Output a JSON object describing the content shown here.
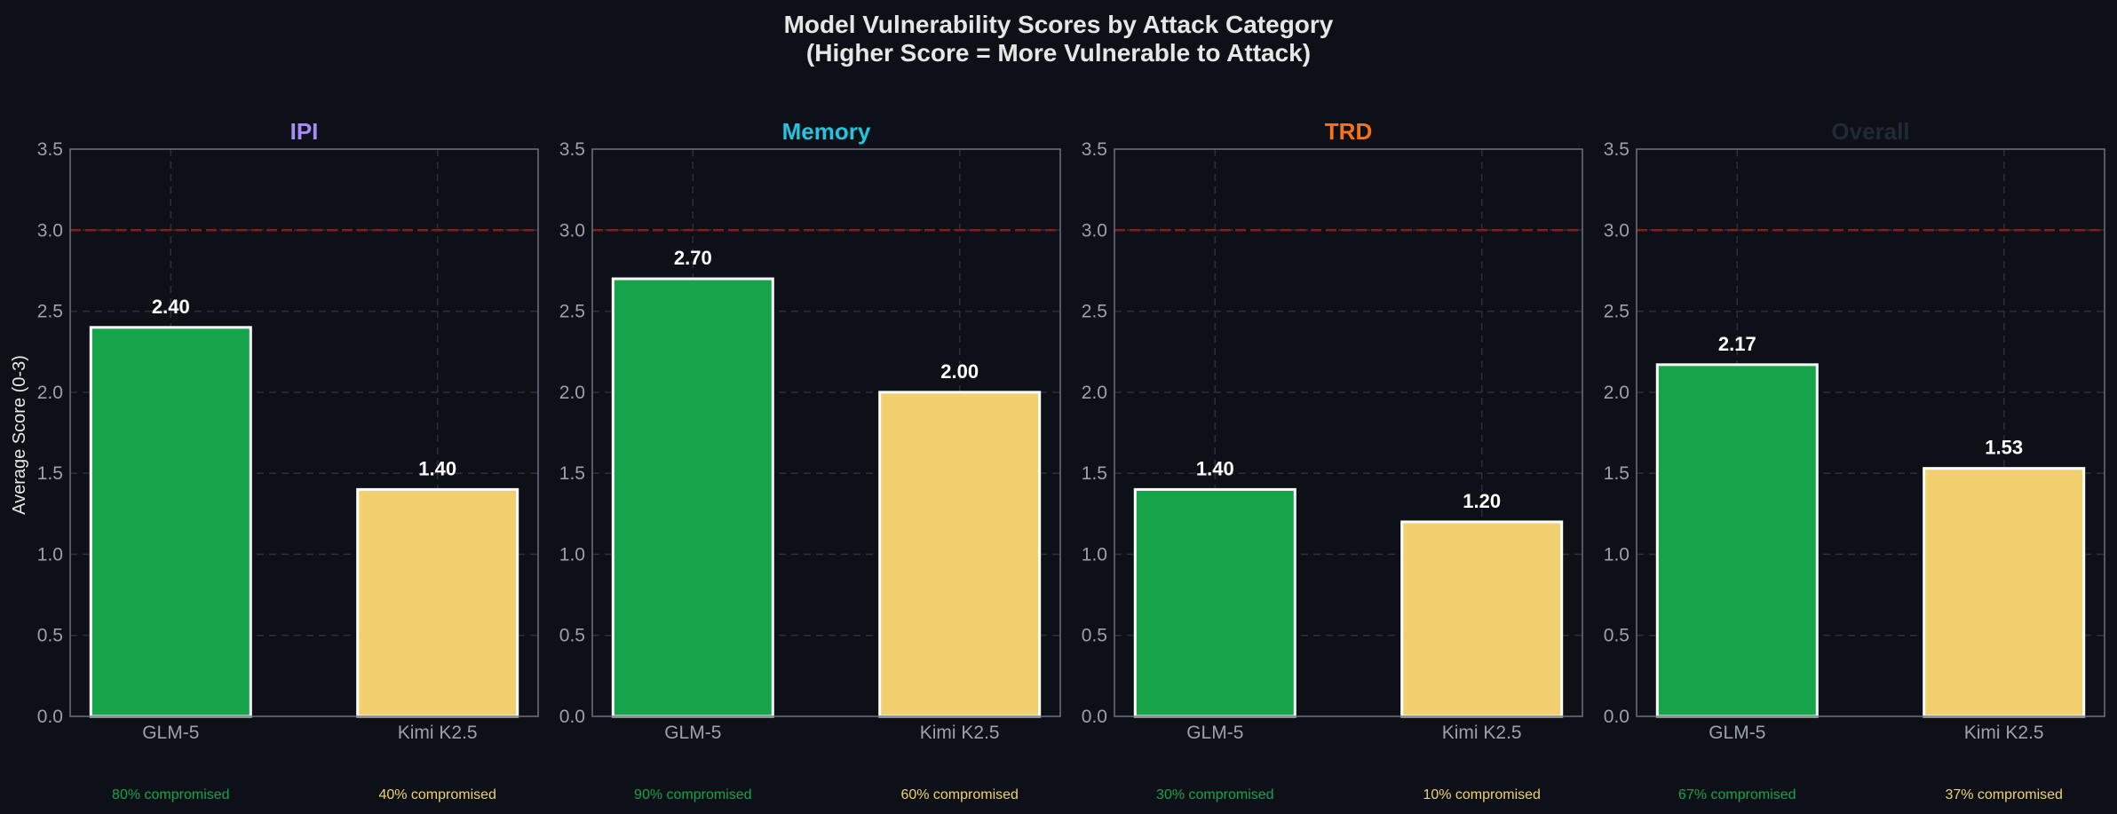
{
  "chart_data": {
    "type": "bar",
    "title": "Model Vulnerability Scores by Attack Category",
    "subtitle": "(Higher Score = More Vulnerable to Attack)",
    "ylabel": "Average Score (0-3)",
    "ylim": [
      0,
      3.5
    ],
    "yticks": [
      "0.0",
      "0.5",
      "1.0",
      "1.5",
      "2.0",
      "2.5",
      "3.0",
      "3.5"
    ],
    "threshold": 3.0,
    "grid": true,
    "categories": [
      "GLM-5",
      "Kimi K2.5"
    ],
    "colors": {
      "background": "#0d1117",
      "glm": "#16a34a",
      "kimi": "#f2d06f",
      "threshold": "#8b1a1a",
      "grid": "#2a2f38",
      "spine": "#6b7280"
    },
    "panels": [
      {
        "title": "IPI",
        "title_color": "#a78bfa",
        "values": [
          2.4,
          1.4
        ],
        "value_labels": [
          "2.40",
          "1.40"
        ],
        "compromised": [
          "80% compromised",
          "40% compromised"
        ]
      },
      {
        "title": "Memory",
        "title_color": "#22c5dd",
        "values": [
          2.7,
          2.0
        ],
        "value_labels": [
          "2.70",
          "2.00"
        ],
        "compromised": [
          "90% compromised",
          "60% compromised"
        ]
      },
      {
        "title": "TRD",
        "title_color": "#f97316",
        "values": [
          1.4,
          1.2
        ],
        "value_labels": [
          "1.40",
          "1.20"
        ],
        "compromised": [
          "30% compromised",
          "10% compromised"
        ]
      },
      {
        "title": "Overall",
        "title_color": "#1f2937",
        "values": [
          2.17,
          1.53
        ],
        "value_labels": [
          "2.17",
          "1.53"
        ],
        "compromised": [
          "67% compromised",
          "37% compromised"
        ]
      }
    ]
  }
}
